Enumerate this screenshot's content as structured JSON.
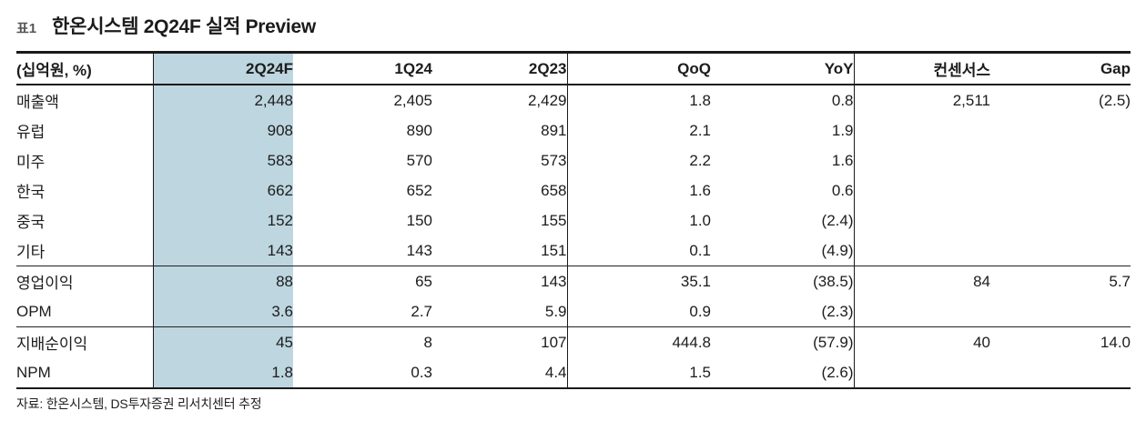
{
  "header": {
    "tag": "표1",
    "title": "한온시스템 2Q24F 실적 Preview"
  },
  "table": {
    "highlight_column": "2Q24F",
    "highlight_color": "#bdd6e0",
    "columns": [
      "(십억원, %)",
      "2Q24F",
      "1Q24",
      "2Q23",
      "QoQ",
      "YoY",
      "컨센서스",
      "Gap"
    ],
    "rows": [
      {
        "label": "매출액",
        "indent": false,
        "section_start": false,
        "values": [
          "2,448",
          "2,405",
          "2,429",
          "1.8",
          "0.8",
          "2,511",
          "(2.5)"
        ]
      },
      {
        "label": "유럽",
        "indent": true,
        "section_start": false,
        "values": [
          "908",
          "890",
          "891",
          "2.1",
          "1.9",
          "",
          ""
        ]
      },
      {
        "label": "미주",
        "indent": true,
        "section_start": false,
        "values": [
          "583",
          "570",
          "573",
          "2.2",
          "1.6",
          "",
          ""
        ]
      },
      {
        "label": "한국",
        "indent": true,
        "section_start": false,
        "values": [
          "662",
          "652",
          "658",
          "1.6",
          "0.6",
          "",
          ""
        ]
      },
      {
        "label": "중국",
        "indent": true,
        "section_start": false,
        "values": [
          "152",
          "150",
          "155",
          "1.0",
          "(2.4)",
          "",
          ""
        ]
      },
      {
        "label": "기타",
        "indent": true,
        "section_start": false,
        "values": [
          "143",
          "143",
          "151",
          "0.1",
          "(4.9)",
          "",
          ""
        ]
      },
      {
        "label": "영업이익",
        "indent": false,
        "section_start": true,
        "values": [
          "88",
          "65",
          "143",
          "35.1",
          "(38.5)",
          "84",
          "5.7"
        ]
      },
      {
        "label": "OPM",
        "indent": true,
        "section_start": false,
        "values": [
          "3.6",
          "2.7",
          "5.9",
          "0.9",
          "(2.3)",
          "",
          ""
        ]
      },
      {
        "label": "지배순이익",
        "indent": false,
        "section_start": true,
        "values": [
          "45",
          "8",
          "107",
          "444.8",
          "(57.9)",
          "40",
          "14.0"
        ]
      },
      {
        "label": "NPM",
        "indent": true,
        "section_start": false,
        "values": [
          "1.8",
          "0.3",
          "4.4",
          "1.5",
          "(2.6)",
          "",
          ""
        ]
      }
    ]
  },
  "footer": {
    "source": "자료: 한온시스템, DS투자증권 리서치센터 추정"
  }
}
